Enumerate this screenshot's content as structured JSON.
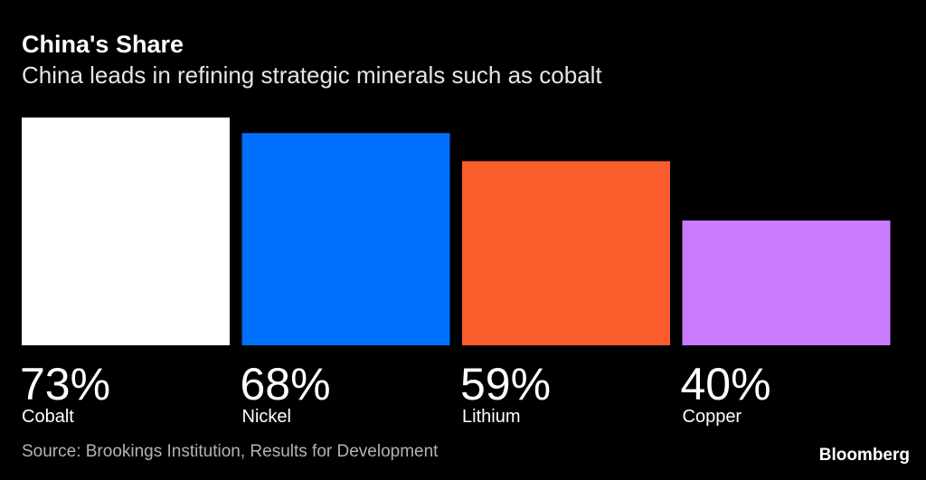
{
  "chart_data": {
    "type": "bar",
    "title": "China's Share",
    "subtitle": "China leads in refining strategic minerals such as cobalt",
    "categories": [
      "Cobalt",
      "Nickel",
      "Lithium",
      "Copper"
    ],
    "values": [
      73,
      68,
      59,
      40
    ],
    "value_labels": [
      "73%",
      "68%",
      "59%",
      "40%"
    ],
    "colors": [
      "#ffffff",
      "#0070ff",
      "#fa5c2c",
      "#c97bff"
    ],
    "xlabel": "",
    "ylabel": "",
    "ylim": [
      0,
      73
    ],
    "grid": false,
    "source": "Source: Brookings Institution, Results for Development"
  },
  "branding": {
    "logo": "Bloomberg"
  }
}
